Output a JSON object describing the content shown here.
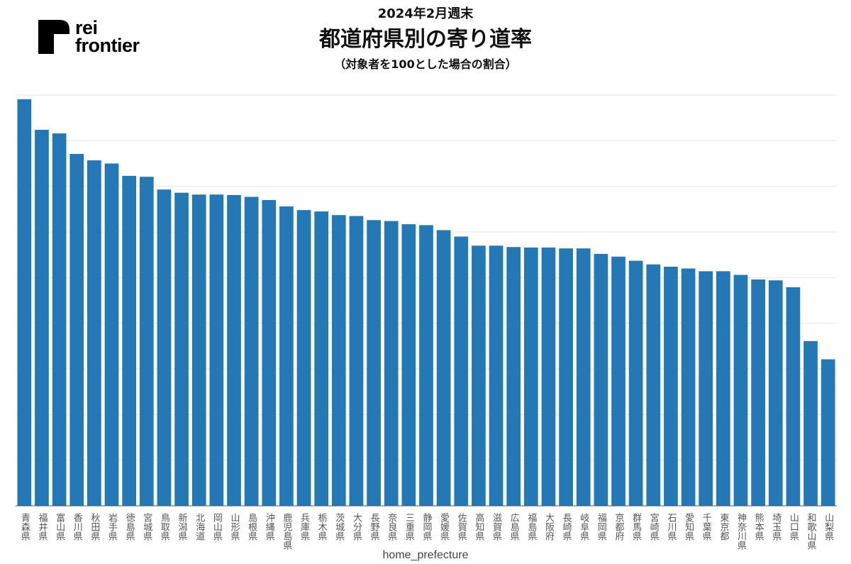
{
  "logo": {
    "line1": "rei",
    "line2": "frontier"
  },
  "header": {
    "subtitle_top": "2024年2月週末",
    "title": "都道府県別の寄り道率",
    "subtitle_bottom": "（対象者を100とした場合の割合）"
  },
  "colors": {
    "bar": "#2378b5",
    "grid": "#e6e6e6",
    "axis": "#555555",
    "tick_label": "#555555"
  },
  "chart_data": {
    "type": "bar",
    "title": "都道府県別の寄り道率",
    "xlabel": "home_prefecture",
    "ylabel": "",
    "ylim": [
      0,
      90
    ],
    "grid": true,
    "y_ticks_labeled": false,
    "categories": [
      "青森県",
      "福井県",
      "富山県",
      "香川県",
      "秋田県",
      "岩手県",
      "徳島県",
      "宮城県",
      "鳥取県",
      "新潟県",
      "北海道",
      "岡山県",
      "山形県",
      "島根県",
      "沖縄県",
      "鹿児島県",
      "兵庫県",
      "栃木県",
      "茨城県",
      "大分県",
      "長野県",
      "奈良県",
      "三重県",
      "静岡県",
      "愛媛県",
      "佐賀県",
      "高知県",
      "滋賀県",
      "広島県",
      "福島県",
      "大阪府",
      "長崎県",
      "岐阜県",
      "福岡県",
      "京都府",
      "群馬県",
      "宮崎県",
      "石川県",
      "愛知県",
      "千葉県",
      "東京都",
      "神奈川県",
      "熊本県",
      "埼玉県",
      "山口県",
      "和歌山県",
      "山梨県"
    ],
    "values": [
      89.1,
      82.4,
      81.6,
      77.1,
      75.7,
      75.0,
      72.3,
      72.1,
      69.3,
      68.6,
      68.2,
      68.2,
      68.1,
      67.7,
      67.0,
      65.6,
      64.8,
      64.5,
      63.7,
      63.5,
      62.6,
      62.4,
      61.7,
      61.5,
      60.4,
      59.0,
      57.0,
      57.0,
      56.7,
      56.6,
      56.6,
      56.4,
      56.4,
      55.2,
      54.6,
      53.7,
      52.9,
      52.4,
      52.0,
      51.4,
      51.4,
      50.6,
      49.6,
      49.4,
      47.9,
      36.1,
      32.1
    ]
  }
}
